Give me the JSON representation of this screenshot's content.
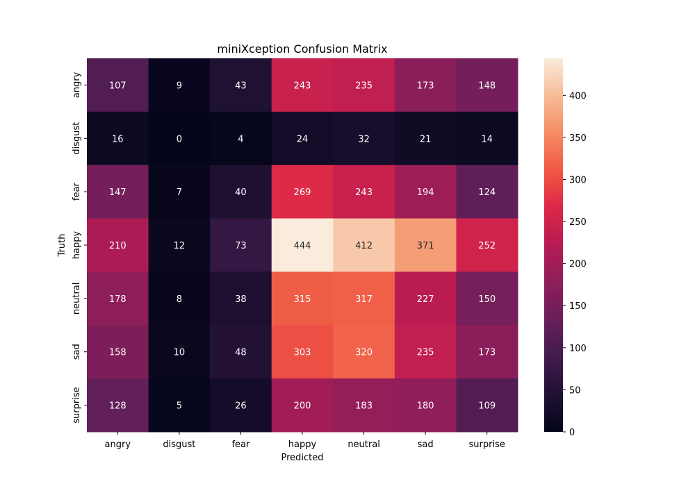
{
  "chart_data": {
    "type": "heatmap",
    "title": "miniXception Confusion Matrix",
    "xlabel": "Predicted",
    "ylabel": "Truth",
    "x_categories": [
      "angry",
      "disgust",
      "fear",
      "happy",
      "neutral",
      "sad",
      "surprise"
    ],
    "y_categories": [
      "angry",
      "disgust",
      "fear",
      "happy",
      "neutral",
      "sad",
      "surprise"
    ],
    "values": [
      [
        107,
        9,
        43,
        243,
        235,
        173,
        148
      ],
      [
        16,
        0,
        4,
        24,
        32,
        21,
        14
      ],
      [
        147,
        7,
        40,
        269,
        243,
        194,
        124
      ],
      [
        210,
        12,
        73,
        444,
        412,
        371,
        252
      ],
      [
        178,
        8,
        38,
        315,
        317,
        227,
        150
      ],
      [
        158,
        10,
        48,
        303,
        320,
        235,
        173
      ],
      [
        128,
        5,
        26,
        200,
        183,
        180,
        109
      ]
    ],
    "colorbar": {
      "range": [
        0,
        444
      ],
      "ticks": [
        0,
        50,
        100,
        150,
        200,
        250,
        300,
        350,
        400
      ],
      "colormap": "rocket"
    }
  }
}
